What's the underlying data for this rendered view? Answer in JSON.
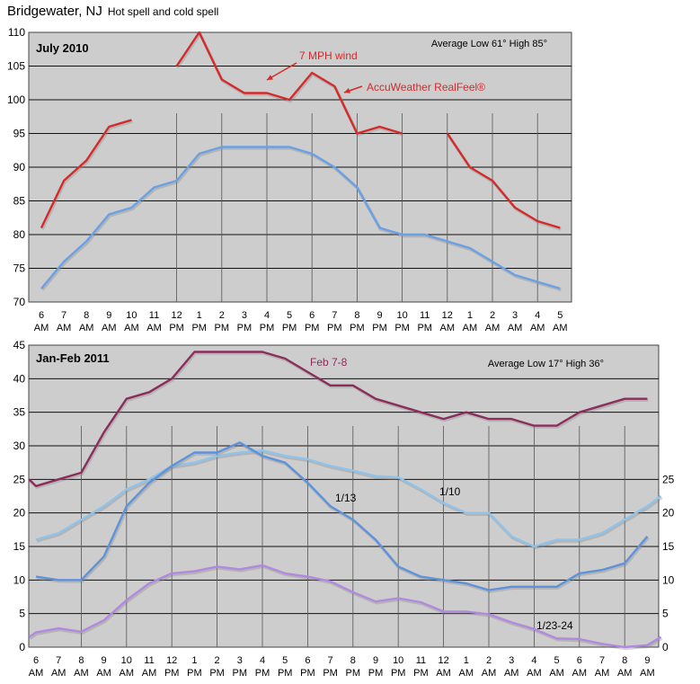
{
  "page": {
    "title": "Bridgewater, NJ",
    "subtitle": "Hot spell and cold spell"
  },
  "chart_data": [
    {
      "type": "line",
      "panel_label": "July 2010",
      "stats_text": "Average Low 61° High 85°",
      "x": [
        "6 AM",
        "7 AM",
        "8 AM",
        "9 AM",
        "10 AM",
        "11 AM",
        "12 PM",
        "1 PM",
        "2 PM",
        "3 PM",
        "4 PM",
        "5 PM",
        "6 PM",
        "7 PM",
        "8 PM",
        "9 PM",
        "10 PM",
        "11 PM",
        "12 AM",
        "1 AM",
        "2 AM",
        "3 AM",
        "4 AM",
        "5 AM"
      ],
      "ylim": [
        70,
        110
      ],
      "yticks": [
        70,
        75,
        80,
        85,
        90,
        95,
        100,
        105,
        110
      ],
      "grid": true,
      "series": [
        {
          "name": "AccuWeather RealFeel®",
          "color": "#d42a2a",
          "segments": [
            [
              [
                0,
                81
              ],
              [
                1,
                88
              ],
              [
                2,
                91
              ],
              [
                3,
                96
              ],
              [
                4,
                97
              ]
            ],
            [
              [
                6,
                105
              ],
              [
                7,
                110
              ],
              [
                8,
                103
              ],
              [
                9,
                101
              ],
              [
                10,
                101
              ],
              [
                11,
                100
              ],
              [
                12,
                104
              ],
              [
                13,
                102
              ],
              [
                14,
                95
              ],
              [
                15,
                96
              ],
              [
                16,
                95
              ]
            ],
            [
              [
                18,
                95
              ],
              [
                19,
                90
              ],
              [
                20,
                88
              ],
              [
                21,
                84
              ],
              [
                22,
                82
              ],
              [
                23,
                81
              ]
            ]
          ]
        },
        {
          "color": "#6aa0e6",
          "segments": [
            [
              [
                0,
                72
              ],
              [
                1,
                76
              ],
              [
                2,
                79
              ],
              [
                3,
                83
              ],
              [
                4,
                84
              ],
              [
                5,
                87
              ],
              [
                6,
                88
              ],
              [
                7,
                92
              ],
              [
                8,
                93
              ],
              [
                9,
                93
              ],
              [
                10,
                93
              ],
              [
                11,
                93
              ],
              [
                12,
                92
              ],
              [
                13,
                90
              ],
              [
                14,
                87
              ],
              [
                15,
                81
              ],
              [
                16,
                80
              ],
              [
                17,
                80
              ],
              [
                18,
                79
              ],
              [
                19,
                78
              ],
              [
                20,
                76
              ],
              [
                21,
                74
              ],
              [
                22,
                73
              ],
              [
                23,
                72
              ]
            ]
          ]
        }
      ],
      "annotations": [
        {
          "text": "7 MPH wind",
          "color": "#d42a2a"
        },
        {
          "text": "AccuWeather RealFeel®",
          "color": "#d42a2a"
        }
      ]
    },
    {
      "type": "line",
      "panel_label": "Jan-Feb 2011",
      "stats_text": "Average Low 17°  High 36°",
      "x": [
        "6 AM",
        "7 AM",
        "8 AM",
        "9 AM",
        "10 AM",
        "11 AM",
        "12 PM",
        "1 PM",
        "2 PM",
        "3 PM",
        "4 PM",
        "5 PM",
        "6 PM",
        "7 PM",
        "8 PM",
        "9 PM",
        "10 PM",
        "11 PM",
        "12 AM",
        "1 AM",
        "2 AM",
        "3 AM",
        "4 AM",
        "5 AM",
        "6 AM",
        "7 AM",
        "8 AM",
        "9 AM"
      ],
      "ylim": [
        0,
        45
      ],
      "yticks": [
        0,
        5,
        10,
        15,
        20,
        25,
        30,
        35,
        40,
        45
      ],
      "right_yticks": [
        0,
        5,
        10,
        15,
        20,
        25
      ],
      "grid": true,
      "series": [
        {
          "name": "Feb 7-8",
          "color": "#8c2d5c",
          "points": [
            [
              -0.3,
              25
            ],
            [
              0,
              24
            ],
            [
              1,
              25
            ],
            [
              2,
              26
            ],
            [
              3,
              32
            ],
            [
              4,
              37
            ],
            [
              5,
              38
            ],
            [
              6,
              40
            ],
            [
              7,
              44
            ],
            [
              8,
              44
            ],
            [
              9,
              44
            ],
            [
              10,
              44
            ],
            [
              11,
              43
            ],
            [
              12,
              41
            ],
            [
              13,
              39
            ],
            [
              14,
              39
            ],
            [
              15,
              37
            ],
            [
              16,
              36
            ],
            [
              17,
              35
            ],
            [
              18,
              34
            ],
            [
              19,
              35
            ],
            [
              20,
              34
            ],
            [
              21,
              34
            ],
            [
              22,
              33
            ],
            [
              23,
              33
            ],
            [
              24,
              35
            ],
            [
              25,
              36
            ],
            [
              26,
              37
            ],
            [
              27,
              37
            ]
          ]
        },
        {
          "name": "1/10",
          "color": "#8fc3ea",
          "points": [
            [
              0,
              16
            ],
            [
              1,
              17
            ],
            [
              2,
              19
            ],
            [
              3,
              21
            ],
            [
              4,
              23.5
            ],
            [
              5,
              25
            ],
            [
              6,
              27
            ],
            [
              7,
              27.5
            ],
            [
              8,
              28.5
            ],
            [
              9,
              29
            ],
            [
              10,
              29.3
            ],
            [
              11,
              28.5
            ],
            [
              12,
              28
            ],
            [
              13,
              27
            ],
            [
              14,
              26.3
            ],
            [
              15,
              25.5
            ],
            [
              16,
              25.3
            ],
            [
              17,
              23.5
            ],
            [
              18,
              21.5
            ],
            [
              19,
              20
            ],
            [
              20,
              20
            ],
            [
              21,
              16.5
            ],
            [
              22,
              15
            ],
            [
              23,
              16
            ],
            [
              24,
              16
            ],
            [
              25,
              17
            ],
            [
              26,
              19
            ],
            [
              27,
              21
            ],
            [
              27.6,
              22.5
            ]
          ]
        },
        {
          "name": "1/13",
          "color": "#5e93dc",
          "points": [
            [
              0,
              10.5
            ],
            [
              1,
              10
            ],
            [
              2,
              10
            ],
            [
              3,
              13.5
            ],
            [
              4,
              21
            ],
            [
              5,
              24.5
            ],
            [
              6,
              27
            ],
            [
              7,
              29
            ],
            [
              8,
              29
            ],
            [
              9,
              30.5
            ],
            [
              10,
              28.5
            ],
            [
              11,
              27.5
            ],
            [
              12,
              24.5
            ],
            [
              13,
              21
            ],
            [
              14,
              19
            ],
            [
              15,
              16
            ],
            [
              16,
              12
            ],
            [
              17,
              10.5
            ],
            [
              18,
              10
            ],
            [
              19,
              9.5
            ],
            [
              20,
              8.5
            ],
            [
              21,
              9
            ],
            [
              22,
              9
            ],
            [
              23,
              9
            ],
            [
              24,
              11
            ],
            [
              25,
              11.5
            ],
            [
              26,
              12.5
            ],
            [
              27,
              16.5
            ]
          ]
        },
        {
          "name": "1/23-24",
          "color": "#b18ae0",
          "points": [
            [
              -0.3,
              1.5
            ],
            [
              0,
              2.2
            ],
            [
              1,
              2.8
            ],
            [
              2,
              2.3
            ],
            [
              3,
              4
            ],
            [
              4,
              7
            ],
            [
              5,
              9.5
            ],
            [
              6,
              11
            ],
            [
              7,
              11.3
            ],
            [
              8,
              12
            ],
            [
              9,
              11.6
            ],
            [
              10,
              12.2
            ],
            [
              11,
              11
            ],
            [
              12,
              10.5
            ],
            [
              13,
              9.8
            ],
            [
              14,
              8.2
            ],
            [
              15,
              6.8
            ],
            [
              16,
              7.3
            ],
            [
              17,
              6.7
            ],
            [
              18,
              5.3
            ],
            [
              19,
              5.3
            ],
            [
              20,
              4.9
            ],
            [
              21,
              3.7
            ],
            [
              22,
              2.7
            ],
            [
              23,
              1.3
            ],
            [
              24,
              1.2
            ],
            [
              25,
              0.5
            ],
            [
              26,
              0
            ],
            [
              27,
              0.3
            ],
            [
              27.6,
              1.5
            ]
          ]
        }
      ],
      "annotations": [
        {
          "text": "Feb 7-8",
          "color": "#8c2d5c"
        },
        {
          "text": "1/13",
          "color": "#000000"
        },
        {
          "text": "1/10",
          "color": "#000000"
        },
        {
          "text": "1/23-24",
          "color": "#000000"
        }
      ]
    }
  ]
}
